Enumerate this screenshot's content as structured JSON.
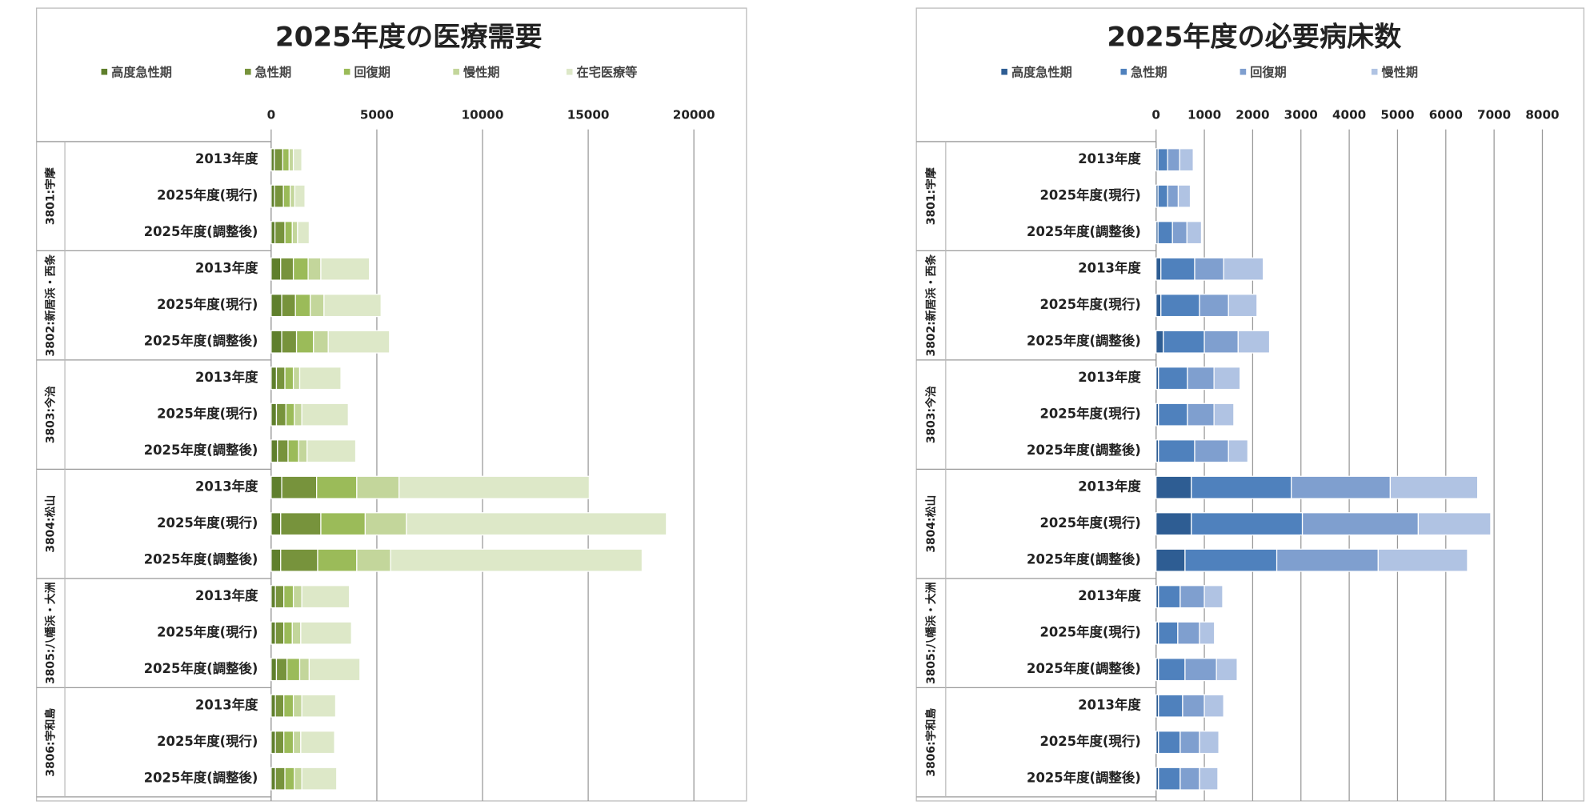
{
  "chart_data": [
    {
      "type": "bar",
      "orientation": "horizontal",
      "stacked": true,
      "title": "2025年度の医療需要",
      "groups": [
        "3801:宇摩",
        "3802:新居浜・西条",
        "3803:今治",
        "3804:松山",
        "3805:八幡浜・大洲",
        "3806:宇和島"
      ],
      "categories": [
        "2013年度",
        "2025年度(現行)",
        "2025年度(調整後)",
        "2013年度",
        "2025年度(現行)",
        "2025年度(調整後)",
        "2013年度",
        "2025年度(現行)",
        "2025年度(調整後)",
        "2013年度",
        "2025年度(現行)",
        "2025年度(調整後)",
        "2013年度",
        "2025年度(現行)",
        "2025年度(調整後)",
        "2013年度",
        "2025年度(現行)",
        "2025年度(調整後)"
      ],
      "xlim": [
        0,
        20000
      ],
      "xticks": [
        0,
        5000,
        10000,
        15000,
        20000
      ],
      "grid": true,
      "legend": "top",
      "series": [
        {
          "name": "高度急性期",
          "color": "#5f7f2c",
          "values": [
            150,
            160,
            180,
            450,
            500,
            500,
            250,
            250,
            300,
            500,
            450,
            450,
            200,
            200,
            250,
            200,
            200,
            200
          ]
        },
        {
          "name": "急性期",
          "color": "#77933c",
          "values": [
            400,
            420,
            470,
            600,
            650,
            700,
            400,
            450,
            500,
            1650,
            1900,
            1750,
            400,
            400,
            500,
            400,
            400,
            450
          ]
        },
        {
          "name": "回復期",
          "color": "#9bbb59",
          "values": [
            300,
            320,
            350,
            700,
            700,
            800,
            400,
            400,
            500,
            1900,
            2100,
            1850,
            450,
            400,
            600,
            450,
            450,
            450
          ]
        },
        {
          "name": "慢性期",
          "color": "#c3d69b",
          "values": [
            200,
            220,
            250,
            600,
            650,
            700,
            300,
            350,
            400,
            2000,
            1950,
            1600,
            400,
            400,
            450,
            400,
            350,
            350
          ]
        },
        {
          "name": "在宅医療等",
          "color": "#dde8c8",
          "values": [
            400,
            480,
            550,
            2300,
            2700,
            2900,
            1950,
            2200,
            2300,
            9000,
            12300,
            11900,
            2250,
            2400,
            2400,
            1600,
            1600,
            1650
          ]
        }
      ]
    },
    {
      "type": "bar",
      "orientation": "horizontal",
      "stacked": true,
      "title": "2025年度の必要病床数",
      "groups": [
        "3801:宇摩",
        "3802:新居浜・西条",
        "3803:今治",
        "3804:松山",
        "3805:八幡浜・大洲",
        "3806:宇和島"
      ],
      "categories": [
        "2013年度",
        "2025年度(現行)",
        "2025年度(調整後)",
        "2013年度",
        "2025年度(現行)",
        "2025年度(調整後)",
        "2013年度",
        "2025年度(現行)",
        "2025年度(調整後)",
        "2013年度",
        "2025年度(現行)",
        "2025年度(調整後)",
        "2013年度",
        "2025年度(現行)",
        "2025年度(調整後)",
        "2013年度",
        "2025年度(現行)",
        "2025年度(調整後)"
      ],
      "xlim": [
        0,
        8000
      ],
      "xticks": [
        0,
        1000,
        2000,
        3000,
        4000,
        5000,
        6000,
        7000,
        8000
      ],
      "grid": true,
      "legend": "top",
      "series": [
        {
          "name": "高度急性期",
          "color": "#2e5d93",
          "values": [
            40,
            40,
            40,
            100,
            100,
            150,
            50,
            50,
            50,
            730,
            730,
            600,
            50,
            50,
            50,
            50,
            50,
            50
          ]
        },
        {
          "name": "急性期",
          "color": "#4f81bd",
          "values": [
            200,
            200,
            300,
            700,
            800,
            850,
            600,
            600,
            750,
            2070,
            2300,
            1900,
            450,
            400,
            550,
            500,
            450,
            450
          ]
        },
        {
          "name": "回復期",
          "color": "#7f9fcf",
          "values": [
            250,
            220,
            300,
            600,
            600,
            700,
            550,
            550,
            700,
            2050,
            2400,
            2100,
            500,
            450,
            650,
            450,
            400,
            400
          ]
        },
        {
          "name": "慢性期",
          "color": "#b0c3e3",
          "values": [
            280,
            250,
            300,
            820,
            590,
            650,
            540,
            410,
            400,
            1810,
            1500,
            1850,
            380,
            310,
            430,
            400,
            400,
            380
          ]
        }
      ]
    }
  ]
}
